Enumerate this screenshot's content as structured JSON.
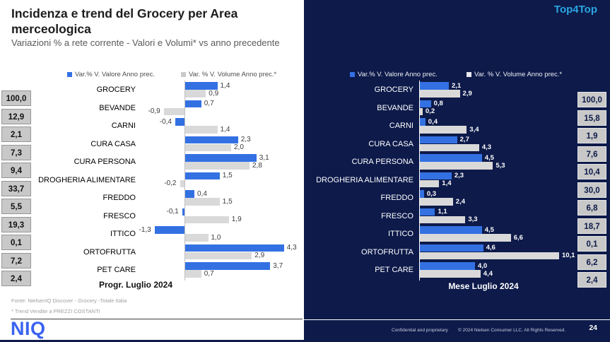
{
  "slide": {
    "title": "Incidenza e trend del Grocery per Area merceologica",
    "subtitle": "Variazioni % a rete corrente - Valori e Volumi* vs anno precedente",
    "top_right_label": "Top4Top",
    "logo_text": "NIQ",
    "footnotes": {
      "fonte": "Fonte: NielsenIQ Discover  - Grocery -Totale Italia",
      "trend": "* Trend Vendite a PREZZI COSTANTI"
    },
    "footer_right": {
      "confidential": "Confidential and proprietary",
      "copyright": "© 2024 Nielsen Consumer LLC. All Rights Reserved.",
      "page_number": "24"
    }
  },
  "legend": {
    "valore": "Var.% V. Valore Anno prec.",
    "volume": "Var. % V. Volume Anno prec.*"
  },
  "colors": {
    "bar_blue": "#3371e3",
    "bar_gray": "#d9d9d9",
    "navy_background": "#0d1a4a",
    "accent_blue": "#2ba6e2",
    "incidenza_box": "#c8c8c8",
    "logo_blue": "#3b63f0"
  },
  "chart_data": [
    {
      "type": "bar",
      "orientation": "horizontal",
      "title": "Progr. Luglio 2024",
      "legend_position": "top",
      "categories": [
        "GROCERY",
        "BEVANDE",
        "CARNI",
        "CURA CASA",
        "CURA PERSONA",
        "DROGHERIA ALIMENTARE",
        "FREDDO",
        "FRESCO",
        "ITTICO",
        "ORTOFRUTTA",
        "PET CARE"
      ],
      "series": [
        {
          "name": "Var.% V. Valore Anno prec.",
          "color": "#3371e3",
          "values": [
            1.4,
            0.7,
            -0.4,
            2.3,
            3.1,
            1.5,
            0.4,
            -0.1,
            -1.3,
            4.3,
            3.7
          ],
          "labels": [
            "1,4",
            "0,7",
            "-0,4",
            "2,3",
            "3,1",
            "1,5",
            "0,4",
            "-0,1",
            "-1,3",
            "4,3",
            "3,7"
          ]
        },
        {
          "name": "Var. % V. Volume Anno prec.*",
          "color": "#d9d9d9",
          "values": [
            0.9,
            -0.9,
            1.4,
            2.0,
            2.8,
            -0.2,
            1.5,
            1.9,
            1.0,
            2.9,
            0.7
          ],
          "labels": [
            "0,9",
            "-0,9",
            "1,4",
            "2,0",
            "2,8",
            "-0,2",
            "1,5",
            "1,9",
            "1,0",
            "2,9",
            "0,7"
          ]
        }
      ],
      "incidenza": {
        "side": "left",
        "values": [
          100.0,
          12.9,
          2.1,
          7.3,
          9.4,
          33.7,
          5.5,
          19.3,
          0.1,
          7.2,
          2.4
        ],
        "labels": [
          "100,0",
          "12,9",
          "2,1",
          "7,3",
          "9,4",
          "33,7",
          "5,5",
          "19,3",
          "0,1",
          "7,2",
          "2,4"
        ]
      },
      "xlim": [
        -1.5,
        5.0
      ]
    },
    {
      "type": "bar",
      "orientation": "horizontal",
      "title": "Mese Luglio 2024",
      "legend_position": "top",
      "categories": [
        "GROCERY",
        "BEVANDE",
        "CARNI",
        "CURA CASA",
        "CURA PERSONA",
        "DROGHERIA ALIMENTARE",
        "FREDDO",
        "FRESCO",
        "ITTICO",
        "ORTOFRUTTA",
        "PET CARE"
      ],
      "series": [
        {
          "name": "Var.% V. Valore Anno prec.",
          "color": "#3371e3",
          "values": [
            2.1,
            0.8,
            0.4,
            2.7,
            4.5,
            2.3,
            0.3,
            1.1,
            4.5,
            4.6,
            4.0
          ],
          "labels": [
            "2,1",
            "0,8",
            "0,4",
            "2,7",
            "4,5",
            "2,3",
            "0,3",
            "1,1",
            "4,5",
            "4,6",
            "4,0"
          ]
        },
        {
          "name": "Var. % V. Volume Anno prec.*",
          "color": "#d9d9d9",
          "values": [
            2.9,
            0.2,
            3.4,
            4.3,
            5.3,
            1.4,
            2.4,
            3.3,
            6.6,
            10.1,
            4.4
          ],
          "labels": [
            "2,9",
            "0,2",
            "3,4",
            "4,3",
            "5,3",
            "1,4",
            "2,4",
            "3,3",
            "6,6",
            "10,1",
            "4,4"
          ]
        }
      ],
      "incidenza": {
        "side": "right",
        "values": [
          100.0,
          15.8,
          1.9,
          7.6,
          10.4,
          30.0,
          6.8,
          18.7,
          0.1,
          6.2,
          2.4
        ],
        "labels": [
          "100,0",
          "15,8",
          "1,9",
          "7,6",
          "10,4",
          "30,0",
          "6,8",
          "18,7",
          "0,1",
          "6,2",
          "2,4"
        ]
      },
      "xlim": [
        0,
        11.0
      ]
    }
  ]
}
